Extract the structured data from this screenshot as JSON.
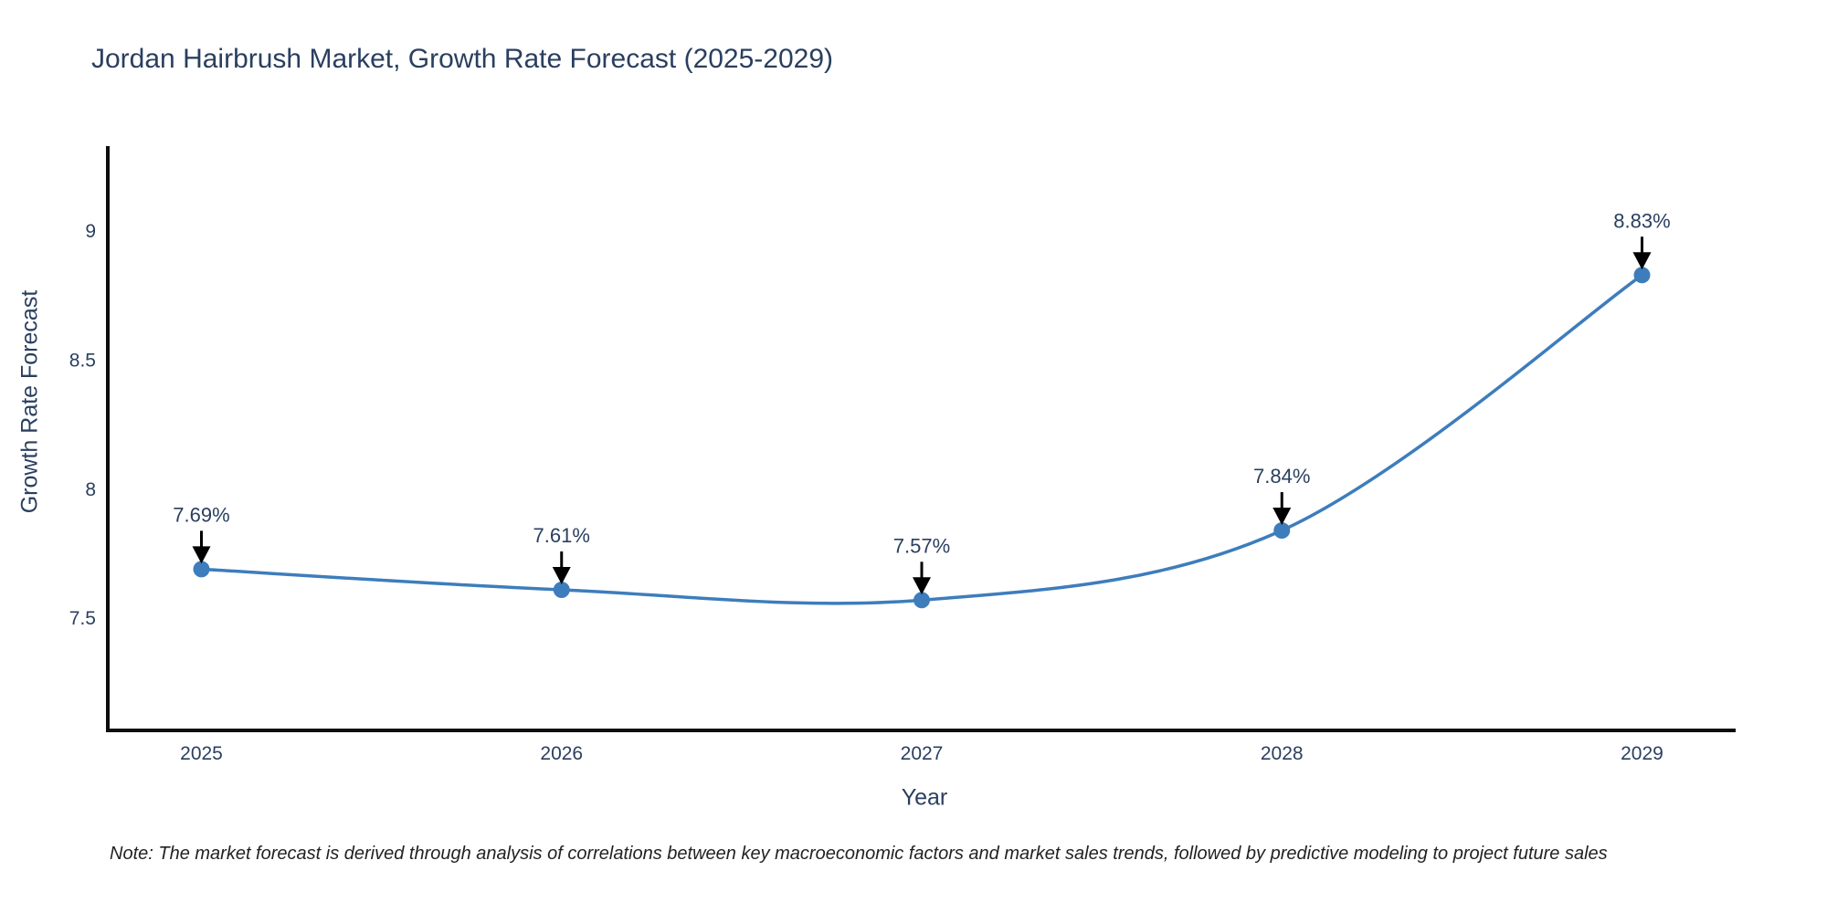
{
  "note": "Note: The market forecast is derived through analysis of correlations between key macroeconomic factors and market sales trends, followed by predictive modeling to project future sales",
  "chart_data": {
    "type": "line",
    "title": "Jordan Hairbrush Market, Growth Rate Forecast (2025-2029)",
    "xlabel": "Year",
    "ylabel": "Growth Rate Forecast",
    "x": [
      2025,
      2026,
      2027,
      2028,
      2029
    ],
    "y": [
      7.69,
      7.61,
      7.57,
      7.84,
      8.83
    ],
    "point_labels": [
      "7.69%",
      "7.61%",
      "7.57%",
      "7.84%",
      "8.83%"
    ],
    "x_tick_labels": [
      "2025",
      "2026",
      "2027",
      "2028",
      "2029"
    ],
    "y_ticks": [
      7.5,
      8,
      8.5,
      9
    ],
    "y_tick_labels": [
      "7.5",
      "8",
      "8.5",
      "9"
    ],
    "xlim": [
      2024.74,
      2029.26
    ],
    "ylim": [
      7.065,
      9.33
    ],
    "line_shape": "spline",
    "grid": false,
    "legend_position": "none",
    "line_color": "#3d7dbc",
    "marker_color": "#3d7dbc",
    "marker_size": 9,
    "annotation_arrow_color": "#000000",
    "text_color": "#2a3f5f",
    "axis_color": "#0d0d0d",
    "background_color": "#ffffff"
  }
}
